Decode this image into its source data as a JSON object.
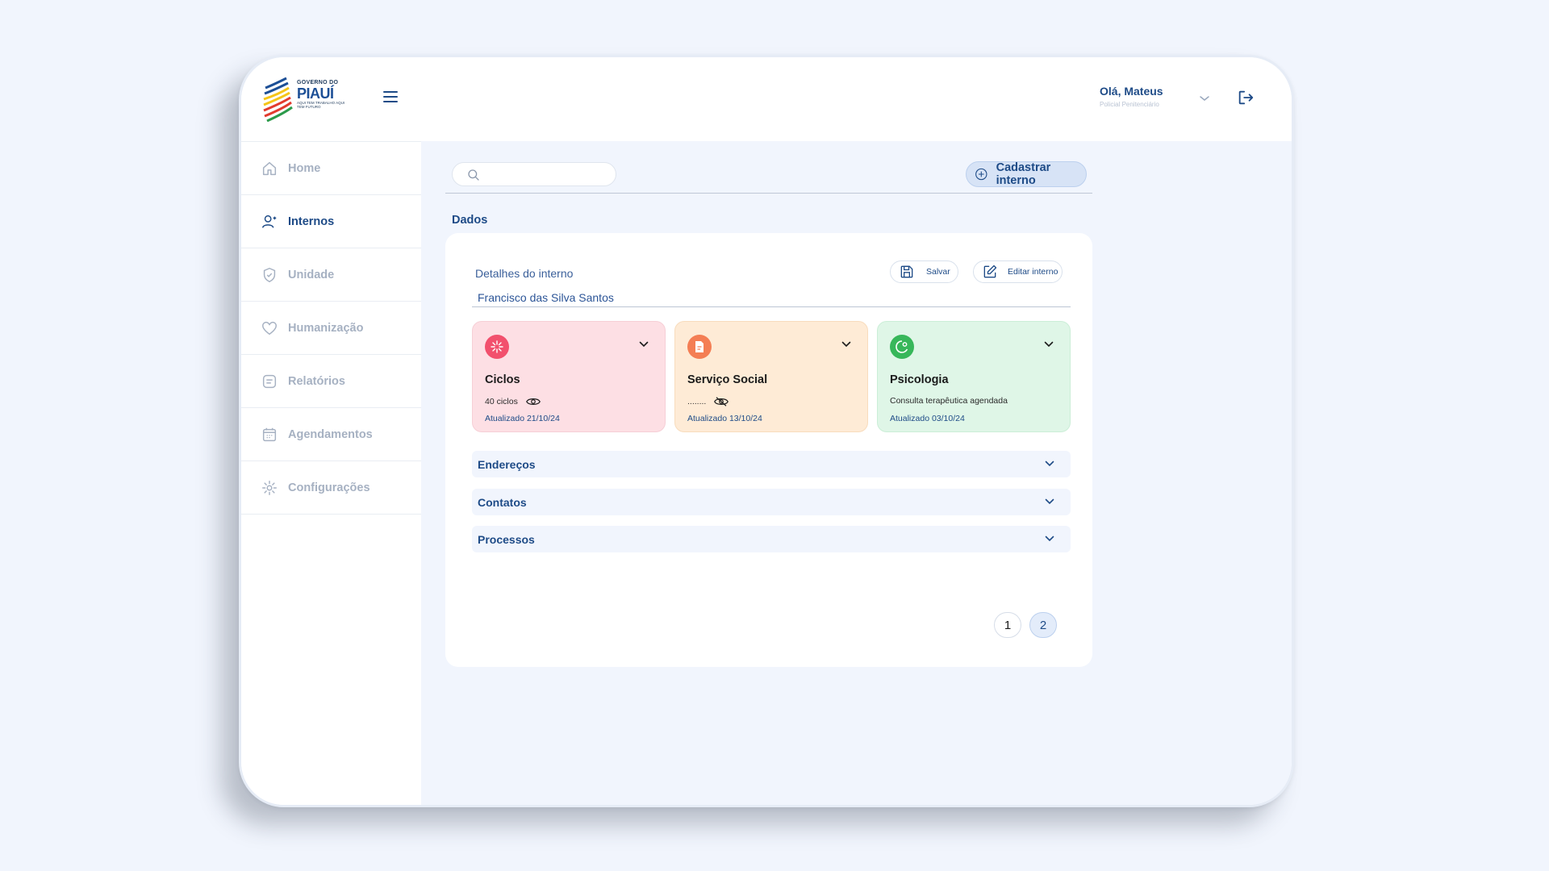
{
  "brand": {
    "line1": "GOVERNO DO",
    "line2": "PIAUÍ",
    "line3": "AQUI TEM TRABALHO AQUI TEM FUTURO"
  },
  "header": {
    "greeting": "Olá, Mateus",
    "role": "Policial Penitenciário"
  },
  "sidebar": {
    "items": [
      {
        "label": "Home",
        "icon": "home-icon",
        "active": false
      },
      {
        "label": "Internos",
        "icon": "user-add-icon",
        "active": true
      },
      {
        "label": "Unidade",
        "icon": "shield-check-icon",
        "active": false
      },
      {
        "label": "Humanização",
        "icon": "heart-icon",
        "active": false
      },
      {
        "label": "Relatórios",
        "icon": "document-icon",
        "active": false
      },
      {
        "label": "Agendamentos",
        "icon": "calendar-icon",
        "active": false
      },
      {
        "label": "Configurações",
        "icon": "gear-icon",
        "active": false
      }
    ]
  },
  "search": {
    "placeholder": "",
    "value": ""
  },
  "actions": {
    "cadastrar_label": "Cadastrar interno"
  },
  "section_title": "Dados",
  "details": {
    "title": "Detalhes do interno",
    "salvar_label": "Salvar",
    "editar_label": "Editar interno",
    "patient_name": "Francisco das Silva Santos"
  },
  "cards": [
    {
      "title": "Ciclos",
      "info": "40 ciclos",
      "updated": "Atualizado 21/10/24",
      "color": "#fddfe4",
      "icon_color": "#f2506d",
      "icon": "sparkle-icon",
      "visibility": "eye-icon"
    },
    {
      "title": "Serviço Social",
      "info": "........",
      "updated": "Atualizado 13/10/24",
      "color": "#feebd6",
      "icon_color": "#f47e54",
      "icon": "document-icon",
      "visibility": "eye-off-icon"
    },
    {
      "title": "Psicologia",
      "info": "Consulta terapêutica agendada",
      "updated": "Atualizado 03/10/24",
      "color": "#dff6e7",
      "icon_color": "#37b75a",
      "icon": "mind-icon"
    }
  ],
  "accordions": [
    {
      "label": "Endereços"
    },
    {
      "label": "Contatos"
    },
    {
      "label": "Processos"
    }
  ],
  "pagination": {
    "pages": [
      "1",
      "2"
    ],
    "current": "2"
  }
}
